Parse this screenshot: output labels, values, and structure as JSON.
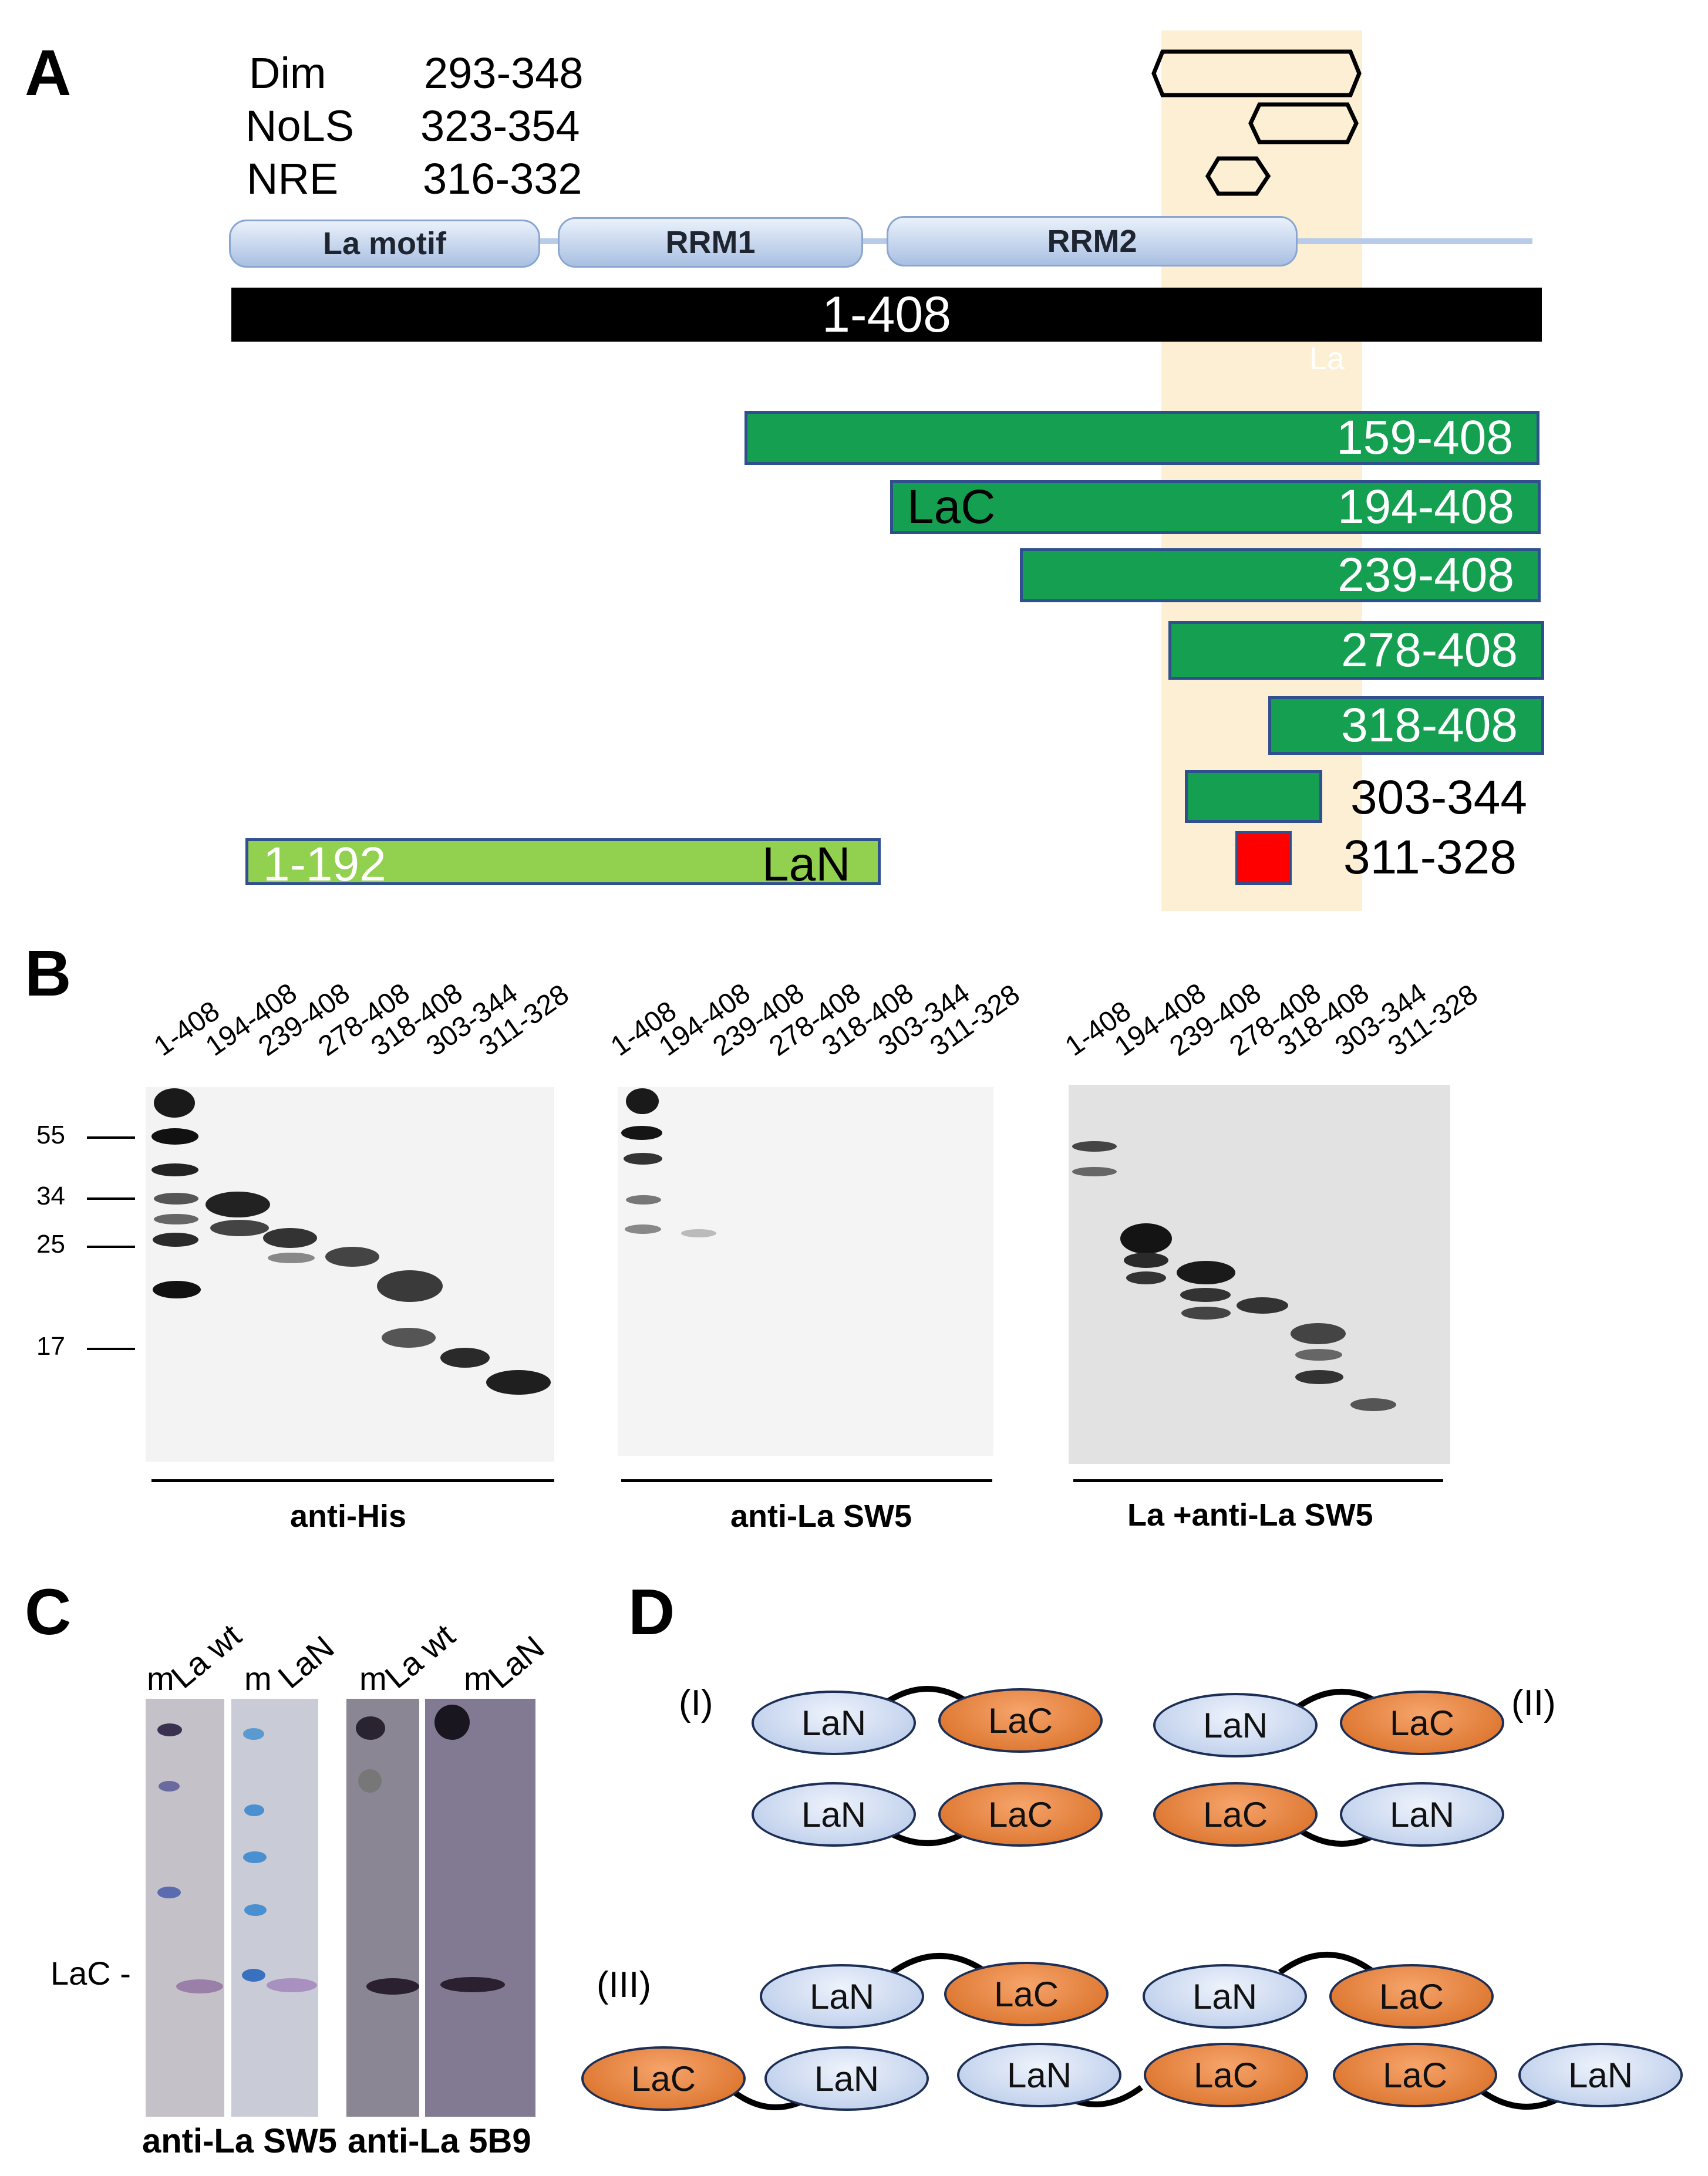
{
  "panels": {
    "a": "A",
    "b": "B",
    "c": "C",
    "d": "D"
  },
  "panel_a": {
    "regions": [
      {
        "name": "Dim",
        "range": "293-348"
      },
      {
        "name": "NoLS",
        "range": "323-354"
      },
      {
        "name": "NRE",
        "range": "316-332"
      }
    ],
    "domains": [
      "La motif",
      "RRM1",
      "RRM2"
    ],
    "full_length": "1-408",
    "highlight_label": "La",
    "fragments": [
      "159-408",
      "194-408",
      "239-408",
      "278-408",
      "318-408",
      "303-344"
    ],
    "lac_label": "LaC",
    "peptide": "311-328",
    "lan": {
      "range": "1-192",
      "name": "LaN"
    },
    "colors": {
      "full": "#000000",
      "fragment": "#14a050",
      "lan": "#92d050",
      "peptide": "#ff0000",
      "highlight": "#fcefd4"
    }
  },
  "panel_b": {
    "lanes": [
      "1-408",
      "194-408",
      "239-408",
      "278-408",
      "318-408",
      "303-344",
      "311-328"
    ],
    "mw_markers": [
      "55",
      "34",
      "25",
      "17"
    ],
    "captions": [
      "anti-His",
      "anti-La SW5",
      "La +anti-La SW5"
    ]
  },
  "panel_c": {
    "lane_labels": [
      "m",
      "La wt",
      "m",
      "LaN",
      "m",
      "La wt",
      "m",
      "LaN"
    ],
    "band_label": "LaC -",
    "captions": [
      "anti-La SW5",
      "anti-La 5B9"
    ]
  },
  "panel_d": {
    "groups": [
      "(I)",
      "(II)",
      "(III)"
    ],
    "lan": "LaN",
    "lac": "LaC",
    "colors": {
      "lan": "#b3c6e7",
      "lac": "#d66a20"
    }
  }
}
